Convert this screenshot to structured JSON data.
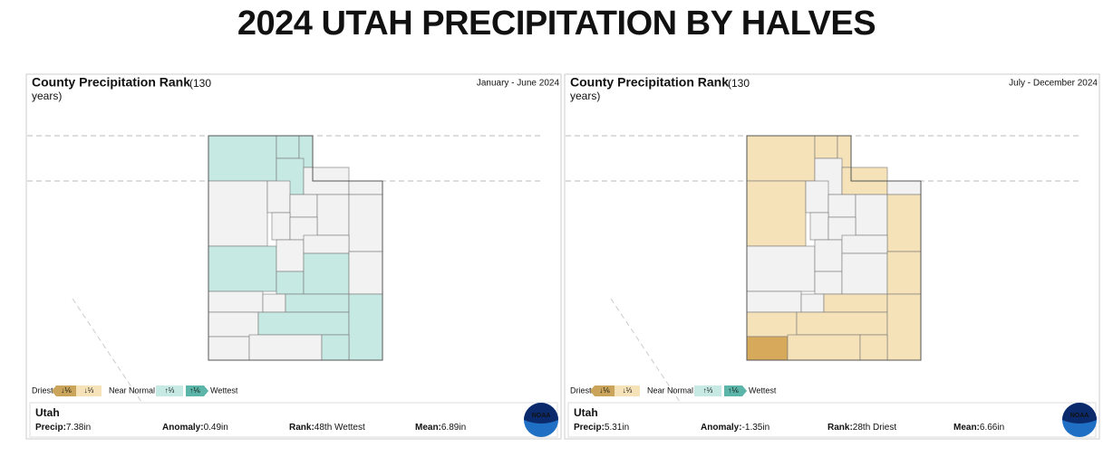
{
  "title": "2024 UTAH PRECIPITATION BY HALVES",
  "panels": [
    {
      "heading": "County Precipitation Rank",
      "years_open": "(130",
      "years_close": "years)",
      "date_range": "January - June 2024",
      "legend": [
        "Driest",
        "↓⅙",
        "↓⅓",
        "Near Normal",
        "↑⅓",
        "↑⅙",
        "Wettest"
      ],
      "summary": {
        "state": "Utah",
        "stats": [
          {
            "label": "Precip:",
            "value": "7.38in"
          },
          {
            "label": "Anomaly:",
            "value": "0.49in"
          },
          {
            "label": "Rank:",
            "value": "48th Wettest"
          },
          {
            "label": "Mean:",
            "value": "6.89in"
          }
        ]
      },
      "logo": "NOAA"
    },
    {
      "heading": "County Precipitation Rank",
      "years_open": "(130",
      "years_close": "years)",
      "date_range": "July - December 2024",
      "legend": [
        "Driest",
        "↓⅙",
        "↓⅓",
        "Near Normal",
        "↑⅓",
        "↑⅙",
        "Wettest"
      ],
      "summary": {
        "state": "Utah",
        "stats": [
          {
            "label": "Precip:",
            "value": "5.31in"
          },
          {
            "label": "Anomaly:",
            "value": "-1.35in"
          },
          {
            "label": "Rank:",
            "value": "28th Driest"
          },
          {
            "label": "Mean:",
            "value": "6.66in"
          }
        ]
      },
      "logo": "NOAA"
    }
  ]
}
